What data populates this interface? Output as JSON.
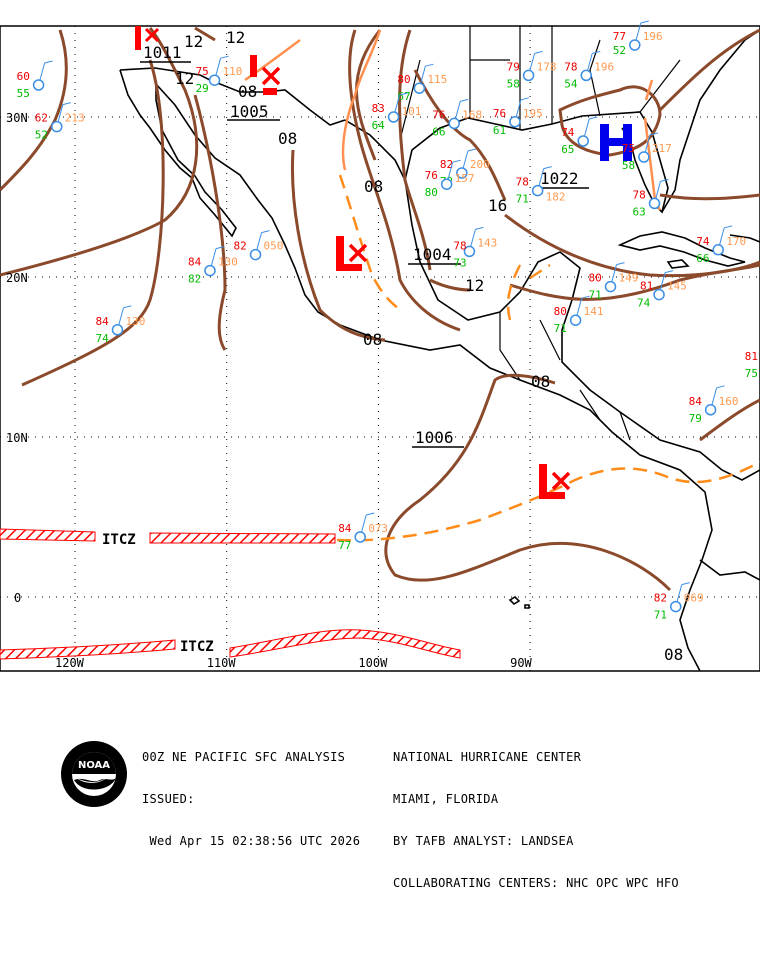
{
  "map": {
    "lat_labels": [
      {
        "text": "30N",
        "lat": 30
      },
      {
        "text": "20N",
        "lat": 20
      },
      {
        "text": "10N",
        "lat": 10
      },
      {
        "text": "0",
        "lat": 0
      }
    ],
    "lon_labels": [
      {
        "text": "120W",
        "lon": -120
      },
      {
        "text": "110W",
        "lon": -110
      },
      {
        "text": "100W",
        "lon": -100
      },
      {
        "text": "90W",
        "lon": -90
      }
    ],
    "colors": {
      "isobar": "#8b4a2b",
      "trough": "#ff8c1a",
      "low": "#ff0000",
      "high": "#0000ee",
      "station": "#3a8ee6",
      "temp": "#ee0000",
      "dew": "#00bb00",
      "pressure": "#ff9a50",
      "coast": "#000000",
      "itcz": "#ff0000"
    },
    "pressure_centers": [
      {
        "type": "L",
        "label": "",
        "lat": 36,
        "lon": -116
      },
      {
        "type": "L",
        "label": "1005",
        "lat": 31.5,
        "lon": -107.5
      },
      {
        "type": "L",
        "label": "1004",
        "lat": 22,
        "lon": -98.5
      },
      {
        "type": "L",
        "label": "1006",
        "lat": 7.5,
        "lon": -88.5
      },
      {
        "type": "H",
        "label": "1022",
        "lat": 28.5,
        "lon": -84.5
      },
      {
        "type": "L",
        "label": "1011",
        "lat": 34,
        "lon": -115
      }
    ],
    "isobar_labels": [
      "12",
      "12",
      "12",
      "08",
      "08",
      "08",
      "16",
      "12",
      "08",
      "08",
      "08"
    ],
    "itcz_labels": [
      "ITCZ",
      "ITCZ"
    ],
    "stations": [
      {
        "t": "62",
        "p": "213",
        "d": "52",
        "lat": 29.4,
        "lon": -121.2
      },
      {
        "t": "60",
        "p": "",
        "d": "55",
        "lat": 32.0,
        "lon": -122.4
      },
      {
        "t": "75",
        "p": "110",
        "d": "29",
        "lat": 32.3,
        "lon": -110.8
      },
      {
        "t": "82",
        "p": "050",
        "d": "",
        "lat": 21.4,
        "lon": -108.1
      },
      {
        "t": "84",
        "p": "130",
        "d": "82",
        "lat": 20.4,
        "lon": -111.1
      },
      {
        "t": "84",
        "p": "130",
        "d": "74",
        "lat": 16.7,
        "lon": -117.2
      },
      {
        "t": "84",
        "p": "073",
        "d": "77",
        "lat": 3.75,
        "lon": -101.2
      },
      {
        "t": "78",
        "p": "143",
        "d": "73",
        "lat": 21.6,
        "lon": -94.0
      },
      {
        "t": "78",
        "p": "182",
        "d": "71",
        "lat": 25.4,
        "lon": -89.5
      },
      {
        "t": "80",
        "p": "149",
        "d": "71",
        "lat": 19.4,
        "lon": -84.7
      },
      {
        "t": "74",
        "p": "170",
        "d": "66",
        "lat": 21.7,
        "lon": -77.6
      },
      {
        "t": "81",
        "p": "145",
        "d": "74",
        "lat": 18.9,
        "lon": -81.5
      },
      {
        "t": "80",
        "p": "141",
        "d": "71",
        "lat": 17.3,
        "lon": -87.0
      },
      {
        "t": "84",
        "p": "160",
        "d": "79",
        "lat": 11.7,
        "lon": -78.1
      },
      {
        "t": "82",
        "p": "069",
        "d": "71",
        "lat": -0.6,
        "lon": -80.4
      },
      {
        "t": "81",
        "p": "",
        "d": "75",
        "lat": 14.5,
        "lon": -74.4
      },
      {
        "t": "79",
        "p": "178",
        "d": "58",
        "lat": 32.6,
        "lon": -90.1
      },
      {
        "t": "78",
        "p": "196",
        "d": "54",
        "lat": 32.6,
        "lon": -86.3
      },
      {
        "t": "77",
        "p": "196",
        "d": "52",
        "lat": 34.5,
        "lon": -83.1
      },
      {
        "t": "80",
        "p": "115",
        "d": "67",
        "lat": 31.8,
        "lon": -97.3
      },
      {
        "t": "83",
        "p": "101",
        "d": "64",
        "lat": 30.0,
        "lon": -99.0
      },
      {
        "t": "76",
        "p": "168",
        "d": "66",
        "lat": 29.6,
        "lon": -95.0
      },
      {
        "t": "82",
        "p": "200",
        "d": "72",
        "lat": 26.5,
        "lon": -94.5
      },
      {
        "t": "76",
        "p": "195",
        "d": "61",
        "lat": 29.7,
        "lon": -91.0
      },
      {
        "t": "74",
        "p": "",
        "d": "65",
        "lat": 28.5,
        "lon": -86.5
      },
      {
        "t": "75",
        "p": "217",
        "d": "58",
        "lat": 27.5,
        "lon": -82.5
      },
      {
        "t": "78",
        "p": "",
        "d": "63",
        "lat": 24.6,
        "lon": -81.8
      },
      {
        "t": "76",
        "p": "157",
        "d": "80",
        "lat": 25.8,
        "lon": -95.5
      }
    ]
  },
  "footer": {
    "line1_left": "00Z NE PACIFIC SFC ANALYSIS",
    "line2_left": "ISSUED:",
    "line3_left": " Wed Apr 15 02:38:56 UTC 2026",
    "line1_right": "NATIONAL HURRICANE CENTER",
    "line2_right": "MIAMI, FLORIDA",
    "line3_right": "BY TAFB ANALYST: LANDSEA",
    "line4_right": "COLLABORATING CENTERS: NHC OPC WPC HFO",
    "logo_text": "NOAA"
  }
}
